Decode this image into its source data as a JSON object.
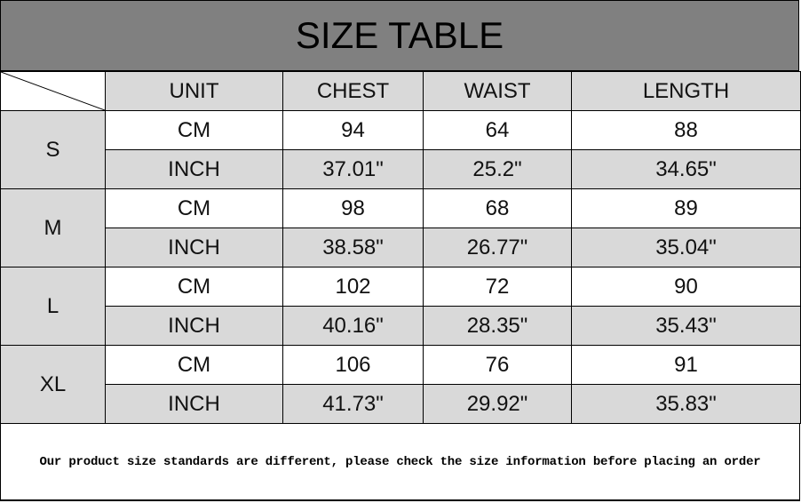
{
  "title": "SIZE TABLE",
  "headers": [
    "UNIT",
    "CHEST",
    "WAIST",
    "LENGTH"
  ],
  "rows": [
    {
      "size": "S",
      "cm": {
        "unit": "CM",
        "chest": "94",
        "waist": "64",
        "length": "88"
      },
      "inch": {
        "unit": "INCH",
        "chest": "37.01\"",
        "waist": "25.2\"",
        "length": "34.65\""
      }
    },
    {
      "size": "M",
      "cm": {
        "unit": "CM",
        "chest": "98",
        "waist": "68",
        "length": "89"
      },
      "inch": {
        "unit": "INCH",
        "chest": "38.58\"",
        "waist": "26.77\"",
        "length": "35.04\""
      }
    },
    {
      "size": "L",
      "cm": {
        "unit": "CM",
        "chest": "102",
        "waist": "72",
        "length": "90"
      },
      "inch": {
        "unit": "INCH",
        "chest": "40.16\"",
        "waist": "28.35\"",
        "length": "35.43\""
      }
    },
    {
      "size": "XL",
      "cm": {
        "unit": "CM",
        "chest": "106",
        "waist": "76",
        "length": "91"
      },
      "inch": {
        "unit": "INCH",
        "chest": "41.73\"",
        "waist": "29.92\"",
        "length": "35.83\""
      }
    }
  ],
  "footer_note": "Our product size standards are different, please check the size information before placing an order",
  "colors": {
    "title_bg": "#808080",
    "shaded": "#d9d9d9"
  }
}
